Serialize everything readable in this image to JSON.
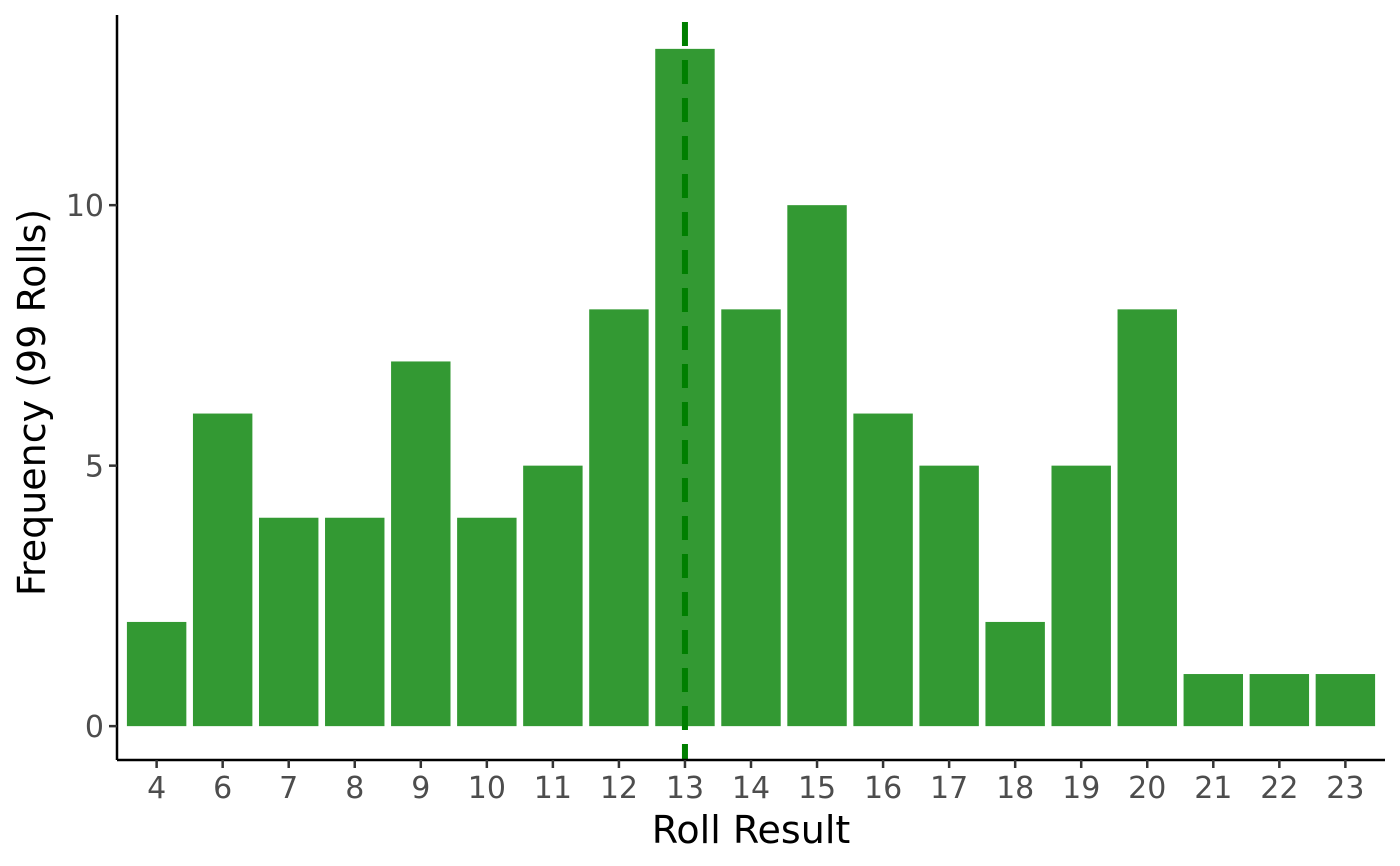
{
  "chart_data": {
    "type": "bar",
    "xlabel": "Roll Result",
    "ylabel": "Frequency (99 Rolls)",
    "categories": [
      "4",
      "6",
      "7",
      "8",
      "9",
      "10",
      "11",
      "12",
      "13",
      "14",
      "15",
      "16",
      "17",
      "18",
      "19",
      "20",
      "21",
      "22",
      "23"
    ],
    "values": [
      2,
      6,
      4,
      4,
      7,
      4,
      5,
      8,
      13,
      8,
      10,
      6,
      5,
      2,
      5,
      8,
      1,
      1,
      1
    ],
    "y_ticks": [
      "0",
      "5",
      "10"
    ],
    "ylim": [
      -0.65,
      13.65
    ],
    "reference_line": {
      "x": "13",
      "style": "dashed"
    },
    "grid": false,
    "legend": "none",
    "colors": {
      "bar": "#339933",
      "reference_line": "#007f00",
      "axis": "#000000",
      "tick_label": "#4d4d4d"
    }
  }
}
